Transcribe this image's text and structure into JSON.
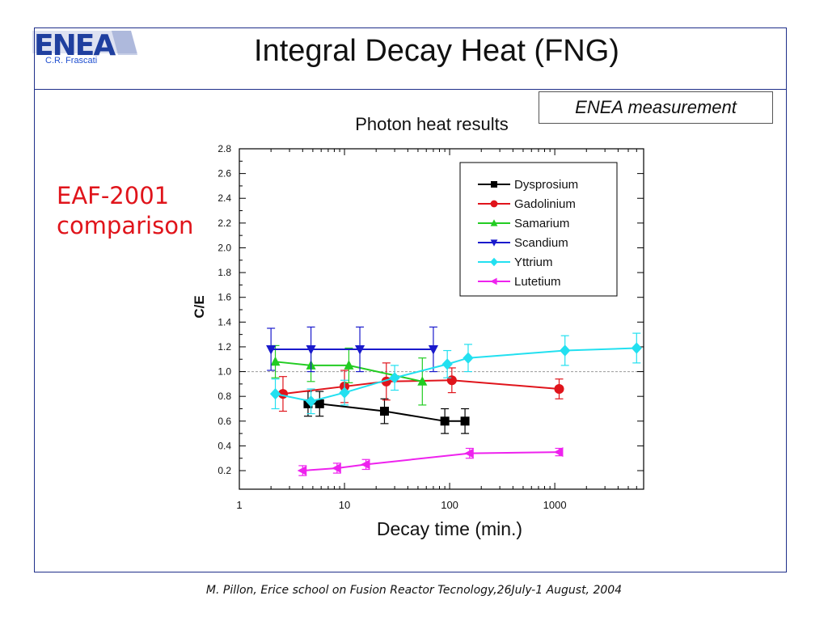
{
  "slide": {
    "title": "Integral Decay Heat (FNG)",
    "logo_text": "ENEA",
    "logo_subtitle": "C.R. Frascati",
    "measurement_box": "ENEA measurement",
    "side_label_line1": "EAF-2001",
    "side_label_line2": "comparison",
    "footer": "M. Pillon, Erice school on Fusion Reactor Tecnology,26July-1 August, 2004"
  },
  "colors": {
    "frame": "#1f2f8a",
    "side_label": "#e0141b",
    "logo": "#1f3f9f"
  },
  "chart_data": {
    "type": "line",
    "title": "Photon heat results",
    "xlabel": "Decay time (min.)",
    "ylabel": "C/E",
    "xscale": "log",
    "xlim": [
      1,
      7000
    ],
    "ylim": [
      0.05,
      2.8
    ],
    "xticks": [
      1,
      10,
      100,
      1000
    ],
    "xtick_labels": [
      "1",
      "10",
      "100",
      "1000"
    ],
    "yticks": [
      0.2,
      0.4,
      0.6,
      0.8,
      1.0,
      1.2,
      1.4,
      1.6,
      1.8,
      2.0,
      2.2,
      2.4,
      2.6,
      2.8
    ],
    "ytick_labels": [
      "0.2",
      "0.4",
      "0.6",
      "0.8",
      "1.0",
      "1.2",
      "1.4",
      "1.6",
      "1.8",
      "2.0",
      "2.2",
      "2.4",
      "2.6",
      "2.8"
    ],
    "reference_line": 1.0,
    "legend_position": "top-right",
    "series": [
      {
        "name": "Dysprosium",
        "color": "#000000",
        "marker": "square",
        "points": [
          {
            "x": 4.5,
            "y": 0.74,
            "err": 0.1
          },
          {
            "x": 5.8,
            "y": 0.74,
            "err": 0.1
          },
          {
            "x": 24,
            "y": 0.68,
            "err": 0.1
          },
          {
            "x": 90,
            "y": 0.6,
            "err": 0.1
          },
          {
            "x": 140,
            "y": 0.6,
            "err": 0.1
          }
        ]
      },
      {
        "name": "Gadolinium",
        "color": "#e0141b",
        "marker": "circle",
        "points": [
          {
            "x": 2.6,
            "y": 0.82,
            "err": 0.14
          },
          {
            "x": 10,
            "y": 0.88,
            "err": 0.13
          },
          {
            "x": 25,
            "y": 0.92,
            "err": 0.15
          },
          {
            "x": 105,
            "y": 0.93,
            "err": 0.1
          },
          {
            "x": 1100,
            "y": 0.86,
            "err": 0.08
          }
        ]
      },
      {
        "name": "Samarium",
        "color": "#22cc22",
        "marker": "triangle-up",
        "points": [
          {
            "x": 2.2,
            "y": 1.08,
            "err": 0.13
          },
          {
            "x": 4.8,
            "y": 1.05,
            "err": 0.13
          },
          {
            "x": 11,
            "y": 1.05,
            "err": 0.14
          },
          {
            "x": 55,
            "y": 0.92,
            "err": 0.19
          }
        ]
      },
      {
        "name": "Scandium",
        "color": "#1a1acc",
        "marker": "triangle-down",
        "points": [
          {
            "x": 2,
            "y": 1.18,
            "err": 0.17
          },
          {
            "x": 4.8,
            "y": 1.18,
            "err": 0.18
          },
          {
            "x": 14,
            "y": 1.18,
            "err": 0.18
          },
          {
            "x": 70,
            "y": 1.18,
            "err": 0.18
          }
        ]
      },
      {
        "name": "Yttrium",
        "color": "#22e0f0",
        "marker": "diamond",
        "points": [
          {
            "x": 2.2,
            "y": 0.82,
            "err": 0.12
          },
          {
            "x": 4.8,
            "y": 0.76,
            "err": 0.1
          },
          {
            "x": 10,
            "y": 0.83,
            "err": 0.1
          },
          {
            "x": 30,
            "y": 0.95,
            "err": 0.1
          },
          {
            "x": 95,
            "y": 1.06,
            "err": 0.11
          },
          {
            "x": 150,
            "y": 1.11,
            "err": 0.11
          },
          {
            "x": 1250,
            "y": 1.17,
            "err": 0.12
          },
          {
            "x": 6000,
            "y": 1.19,
            "err": 0.12
          }
        ]
      },
      {
        "name": "Lutetium",
        "color": "#ee22ee",
        "marker": "triangle-left",
        "points": [
          {
            "x": 4,
            "y": 0.2,
            "err": 0.04
          },
          {
            "x": 8.5,
            "y": 0.22,
            "err": 0.04
          },
          {
            "x": 16,
            "y": 0.25,
            "err": 0.04
          },
          {
            "x": 155,
            "y": 0.34,
            "err": 0.04
          },
          {
            "x": 1100,
            "y": 0.35,
            "err": 0.03
          }
        ]
      }
    ]
  }
}
